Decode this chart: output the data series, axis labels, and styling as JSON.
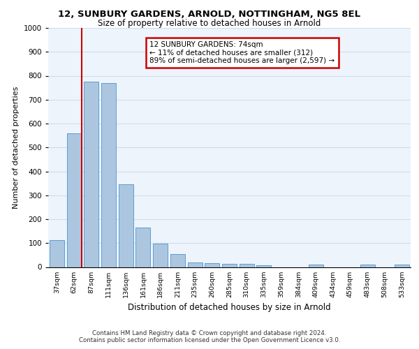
{
  "title1": "12, SUNBURY GARDENS, ARNOLD, NOTTINGHAM, NG5 8EL",
  "title2": "Size of property relative to detached houses in Arnold",
  "xlabel": "Distribution of detached houses by size in Arnold",
  "ylabel": "Number of detached properties",
  "categories": [
    "37sqm",
    "62sqm",
    "87sqm",
    "111sqm",
    "136sqm",
    "161sqm",
    "186sqm",
    "211sqm",
    "235sqm",
    "260sqm",
    "285sqm",
    "310sqm",
    "335sqm",
    "359sqm",
    "384sqm",
    "409sqm",
    "434sqm",
    "459sqm",
    "483sqm",
    "508sqm",
    "533sqm"
  ],
  "values": [
    113,
    560,
    775,
    770,
    345,
    165,
    98,
    53,
    20,
    15,
    12,
    12,
    8,
    0,
    0,
    10,
    0,
    0,
    10,
    0,
    10
  ],
  "bar_color": "#adc6e0",
  "bar_edge_color": "#5a9fd4",
  "annotation_text": "12 SUNBURY GARDENS: 74sqm\n← 11% of detached houses are smaller (312)\n89% of semi-detached houses are larger (2,597) →",
  "annotation_box_color": "#ffffff",
  "annotation_box_edge_color": "#cc0000",
  "vline_color": "#cc0000",
  "ylim": [
    0,
    1000
  ],
  "yticks": [
    0,
    100,
    200,
    300,
    400,
    500,
    600,
    700,
    800,
    900,
    1000
  ],
  "grid_color": "#ccddee",
  "background_color": "#eef4fb",
  "footer1": "Contains HM Land Registry data © Crown copyright and database right 2024.",
  "footer2": "Contains public sector information licensed under the Open Government Licence v3.0."
}
